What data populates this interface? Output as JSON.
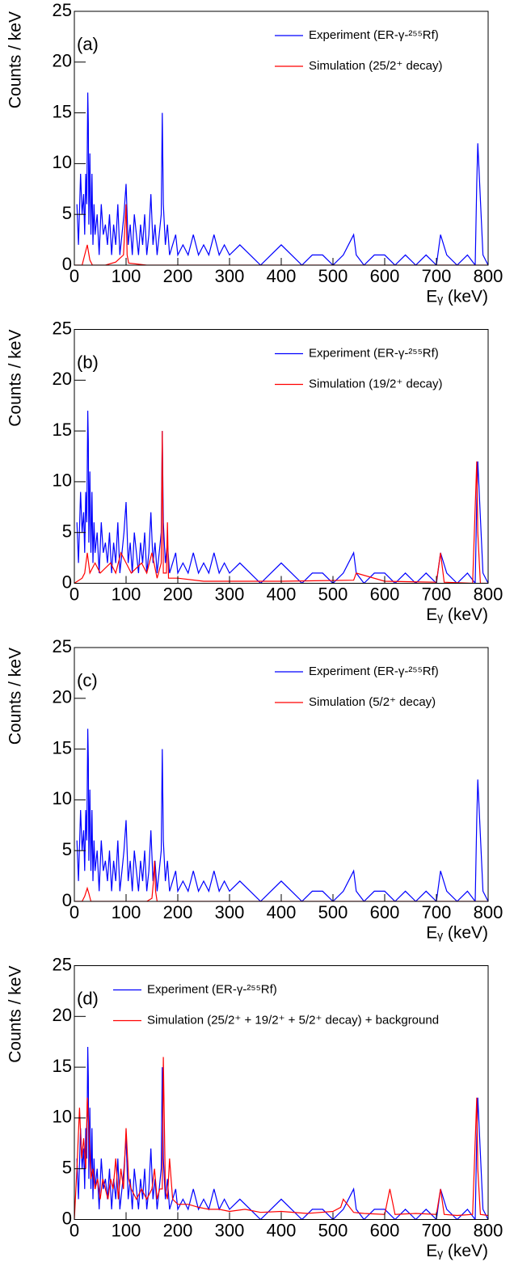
{
  "chart_data": [
    {
      "type": "line",
      "annotation": "(a)",
      "xlabel": "Eᵧ (keV)",
      "ylabel": "Counts / keV",
      "xlim": [
        0,
        800
      ],
      "ylim": [
        0,
        25
      ],
      "xticks": [
        0,
        100,
        200,
        300,
        400,
        500,
        600,
        700,
        800
      ],
      "yticks": [
        0,
        5,
        10,
        15,
        20,
        25
      ],
      "legend": "upper right",
      "series": [
        {
          "name": "Experiment (ER-γ-²⁵⁵Rf)",
          "color": "#0000ff",
          "x": [
            5,
            8,
            12,
            15,
            18,
            20,
            22,
            24,
            26,
            27,
            28,
            30,
            32,
            34,
            36,
            38,
            40,
            44,
            48,
            52,
            56,
            60,
            64,
            68,
            72,
            76,
            80,
            84,
            88,
            92,
            96,
            100,
            104,
            108,
            112,
            116,
            120,
            124,
            128,
            132,
            136,
            140,
            144,
            148,
            152,
            156,
            160,
            164,
            168,
            170,
            172,
            176,
            180,
            184,
            190,
            196,
            200,
            210,
            220,
            230,
            240,
            250,
            260,
            270,
            280,
            290,
            300,
            320,
            340,
            360,
            380,
            400,
            420,
            440,
            460,
            480,
            500,
            520,
            540,
            545,
            560,
            580,
            600,
            620,
            640,
            660,
            680,
            700,
            708,
            720,
            740,
            760,
            775,
            778,
            780,
            790,
            800
          ],
          "values": [
            6,
            2,
            9,
            5,
            7,
            3,
            9,
            6,
            17,
            14,
            4,
            11,
            3,
            9,
            2,
            6,
            3,
            5,
            1,
            6,
            3,
            4,
            2,
            5,
            1,
            4,
            2,
            6,
            1,
            3,
            5,
            8,
            2,
            4,
            1,
            5,
            3,
            1,
            4,
            2,
            5,
            1,
            3,
            7,
            2,
            4,
            1,
            3,
            5,
            15,
            6,
            2,
            4,
            1,
            2,
            3,
            1,
            2,
            1,
            3,
            1,
            2,
            1,
            3,
            1,
            2,
            1,
            2,
            1,
            0,
            1,
            2,
            1,
            0,
            1,
            1,
            0,
            1,
            3,
            1,
            0,
            1,
            1,
            0,
            1,
            0,
            1,
            0,
            3,
            1,
            0,
            1,
            0,
            8,
            12,
            1,
            0
          ]
        },
        {
          "name": "Simulation (25/2⁺ decay)",
          "color": "#ff0000",
          "x": [
            0,
            15,
            20,
            25,
            30,
            35,
            60,
            80,
            95,
            98,
            100,
            102,
            105,
            140,
            170,
            200,
            800
          ],
          "values": [
            0,
            0,
            1,
            2,
            0.5,
            0,
            0,
            0.3,
            1,
            4,
            6,
            1,
            0.2,
            0,
            0,
            0,
            0
          ]
        }
      ]
    },
    {
      "type": "line",
      "annotation": "(b)",
      "xlabel": "Eᵧ (keV)",
      "ylabel": "Counts / keV",
      "xlim": [
        0,
        800
      ],
      "ylim": [
        0,
        25
      ],
      "xticks": [
        0,
        100,
        200,
        300,
        400,
        500,
        600,
        700,
        800
      ],
      "yticks": [
        0,
        5,
        10,
        15,
        20,
        25
      ],
      "legend": "upper right",
      "series": [
        {
          "name": "Experiment (ER-γ-²⁵⁵Rf)",
          "color": "#0000ff",
          "x": [
            5,
            8,
            12,
            15,
            18,
            20,
            22,
            24,
            26,
            27,
            28,
            30,
            32,
            34,
            36,
            38,
            40,
            44,
            48,
            52,
            56,
            60,
            64,
            68,
            72,
            76,
            80,
            84,
            88,
            92,
            96,
            100,
            104,
            108,
            112,
            116,
            120,
            124,
            128,
            132,
            136,
            140,
            144,
            148,
            152,
            156,
            160,
            164,
            168,
            170,
            172,
            176,
            180,
            184,
            190,
            196,
            200,
            210,
            220,
            230,
            240,
            250,
            260,
            270,
            280,
            290,
            300,
            320,
            340,
            360,
            380,
            400,
            420,
            440,
            460,
            480,
            500,
            520,
            540,
            545,
            560,
            580,
            600,
            620,
            640,
            660,
            680,
            700,
            708,
            720,
            740,
            760,
            775,
            778,
            780,
            790,
            800
          ],
          "values": [
            6,
            2,
            9,
            5,
            7,
            3,
            9,
            6,
            17,
            14,
            4,
            11,
            3,
            9,
            2,
            6,
            3,
            5,
            1,
            6,
            3,
            4,
            2,
            5,
            1,
            4,
            2,
            6,
            1,
            3,
            5,
            8,
            2,
            4,
            1,
            5,
            3,
            1,
            4,
            2,
            5,
            1,
            3,
            7,
            2,
            4,
            1,
            3,
            5,
            15,
            6,
            2,
            4,
            1,
            2,
            3,
            1,
            2,
            1,
            3,
            1,
            2,
            1,
            3,
            1,
            2,
            1,
            2,
            1,
            0,
            1,
            2,
            1,
            0,
            1,
            1,
            0,
            1,
            3,
            1,
            0,
            1,
            1,
            0,
            1,
            0,
            1,
            0,
            3,
            1,
            0,
            1,
            0,
            8,
            12,
            1,
            0
          ]
        },
        {
          "name": "Simulation (19/2⁺ decay)",
          "color": "#ff0000",
          "x": [
            0,
            15,
            20,
            25,
            30,
            40,
            50,
            70,
            80,
            90,
            100,
            110,
            130,
            140,
            150,
            160,
            168,
            170,
            172,
            178,
            180,
            182,
            200,
            250,
            400,
            540,
            545,
            600,
            700,
            708,
            715,
            770,
            778,
            780,
            785,
            800
          ],
          "values": [
            0,
            0.5,
            1,
            3,
            1,
            2,
            1,
            2,
            1,
            3,
            2,
            1,
            2,
            1,
            3,
            0.5,
            2,
            15,
            1,
            1,
            6,
            0.5,
            0.5,
            0.2,
            0.2,
            0.3,
            1,
            0.2,
            0.1,
            3,
            0.1,
            0,
            12,
            5,
            0,
            0
          ]
        }
      ]
    },
    {
      "type": "line",
      "annotation": "(c)",
      "xlabel": "Eᵧ (keV)",
      "ylabel": "Counts / keV",
      "xlim": [
        0,
        800
      ],
      "ylim": [
        0,
        25
      ],
      "xticks": [
        0,
        100,
        200,
        300,
        400,
        500,
        600,
        700,
        800
      ],
      "yticks": [
        0,
        5,
        10,
        15,
        20,
        25
      ],
      "legend": "upper right",
      "series": [
        {
          "name": "Experiment (ER-γ-²⁵⁵Rf)",
          "color": "#0000ff",
          "x": [
            5,
            8,
            12,
            15,
            18,
            20,
            22,
            24,
            26,
            27,
            28,
            30,
            32,
            34,
            36,
            38,
            40,
            44,
            48,
            52,
            56,
            60,
            64,
            68,
            72,
            76,
            80,
            84,
            88,
            92,
            96,
            100,
            104,
            108,
            112,
            116,
            120,
            124,
            128,
            132,
            136,
            140,
            144,
            148,
            152,
            156,
            160,
            164,
            168,
            170,
            172,
            176,
            180,
            184,
            190,
            196,
            200,
            210,
            220,
            230,
            240,
            250,
            260,
            270,
            280,
            290,
            300,
            320,
            340,
            360,
            380,
            400,
            420,
            440,
            460,
            480,
            500,
            520,
            540,
            545,
            560,
            580,
            600,
            620,
            640,
            660,
            680,
            700,
            708,
            720,
            740,
            760,
            775,
            778,
            780,
            790,
            800
          ],
          "values": [
            6,
            2,
            9,
            5,
            7,
            3,
            9,
            6,
            17,
            14,
            4,
            11,
            3,
            9,
            2,
            6,
            3,
            5,
            1,
            6,
            3,
            4,
            2,
            5,
            1,
            4,
            2,
            6,
            1,
            3,
            5,
            8,
            2,
            4,
            1,
            5,
            3,
            1,
            4,
            2,
            5,
            1,
            3,
            7,
            2,
            4,
            1,
            3,
            5,
            15,
            6,
            2,
            4,
            1,
            2,
            3,
            1,
            2,
            1,
            3,
            1,
            2,
            1,
            3,
            1,
            2,
            1,
            2,
            1,
            0,
            1,
            2,
            1,
            0,
            1,
            1,
            0,
            1,
            3,
            1,
            0,
            1,
            1,
            0,
            1,
            0,
            1,
            0,
            3,
            1,
            0,
            1,
            0,
            8,
            12,
            1,
            0
          ]
        },
        {
          "name": "Simulation (5/2⁺ decay)",
          "color": "#ff0000",
          "x": [
            0,
            15,
            20,
            25,
            28,
            32,
            40,
            140,
            150,
            153,
            155,
            157,
            160,
            200,
            800
          ],
          "values": [
            0,
            0,
            0.5,
            1.3,
            0.8,
            0,
            0,
            0,
            0.3,
            2,
            4,
            1,
            0,
            0,
            0
          ]
        }
      ]
    },
    {
      "type": "line",
      "annotation": "(d)",
      "xlabel": "Eᵧ (keV)",
      "ylabel": "Counts / keV",
      "xlim": [
        0,
        800
      ],
      "ylim": [
        0,
        25
      ],
      "xticks": [
        0,
        100,
        200,
        300,
        400,
        500,
        600,
        700,
        800
      ],
      "yticks": [
        0,
        5,
        10,
        15,
        20,
        25
      ],
      "legend": "upper left",
      "series": [
        {
          "name": "Experiment (ER-γ-²⁵⁵Rf)",
          "color": "#0000ff",
          "x": [
            5,
            8,
            12,
            15,
            18,
            20,
            22,
            24,
            26,
            27,
            28,
            30,
            32,
            34,
            36,
            38,
            40,
            44,
            48,
            52,
            56,
            60,
            64,
            68,
            72,
            76,
            80,
            84,
            88,
            92,
            96,
            100,
            104,
            108,
            112,
            116,
            120,
            124,
            128,
            132,
            136,
            140,
            144,
            148,
            152,
            156,
            160,
            164,
            168,
            170,
            172,
            176,
            180,
            184,
            190,
            196,
            200,
            210,
            220,
            230,
            240,
            250,
            260,
            270,
            280,
            290,
            300,
            320,
            340,
            360,
            380,
            400,
            420,
            440,
            460,
            480,
            500,
            520,
            540,
            545,
            560,
            580,
            600,
            620,
            640,
            660,
            680,
            700,
            708,
            720,
            740,
            760,
            775,
            778,
            780,
            790,
            800
          ],
          "values": [
            6,
            2,
            9,
            5,
            7,
            3,
            9,
            6,
            17,
            14,
            4,
            11,
            3,
            9,
            2,
            6,
            3,
            5,
            1,
            6,
            3,
            4,
            2,
            5,
            1,
            4,
            2,
            6,
            1,
            3,
            5,
            8,
            2,
            4,
            1,
            5,
            3,
            1,
            4,
            2,
            5,
            1,
            3,
            7,
            2,
            4,
            1,
            3,
            5,
            15,
            6,
            2,
            4,
            1,
            2,
            3,
            1,
            2,
            1,
            3,
            1,
            2,
            1,
            3,
            1,
            2,
            1,
            2,
            1,
            0,
            1,
            2,
            1,
            0,
            1,
            1,
            0,
            1,
            3,
            1,
            0,
            1,
            1,
            0,
            1,
            0,
            1,
            0,
            3,
            1,
            0,
            1,
            0,
            8,
            12,
            1,
            0
          ]
        },
        {
          "name": "Simulation (25/2⁺ + 19/2⁺ + 5/2⁺ decay) + background",
          "color": "#ff0000",
          "x": [
            0,
            5,
            10,
            14,
            18,
            22,
            25,
            28,
            32,
            36,
            40,
            45,
            50,
            55,
            60,
            65,
            70,
            75,
            80,
            85,
            90,
            95,
            100,
            105,
            110,
            120,
            130,
            140,
            150,
            155,
            160,
            165,
            170,
            172,
            176,
            180,
            184,
            190,
            200,
            220,
            240,
            260,
            280,
            300,
            330,
            360,
            400,
            450,
            500,
            515,
            520,
            540,
            560,
            600,
            610,
            620,
            660,
            700,
            708,
            715,
            740,
            770,
            778,
            780,
            785,
            800
          ],
          "values": [
            0,
            5,
            11,
            6,
            8,
            5,
            12,
            9,
            4,
            5,
            3,
            4,
            2,
            4,
            3,
            2,
            4,
            3,
            6,
            2,
            5,
            3,
            9,
            4,
            3,
            2,
            3,
            2,
            3,
            5,
            2,
            3,
            3,
            16,
            3,
            2,
            6,
            2,
            1.5,
            1.5,
            1.2,
            1,
            1,
            0.8,
            1,
            0.7,
            0.8,
            0.6,
            0.8,
            1.2,
            2,
            0.7,
            0.6,
            0.5,
            3,
            0.5,
            0.6,
            0.5,
            3,
            0.5,
            0.4,
            0.5,
            12,
            5,
            0.5,
            0.4
          ]
        }
      ]
    }
  ]
}
